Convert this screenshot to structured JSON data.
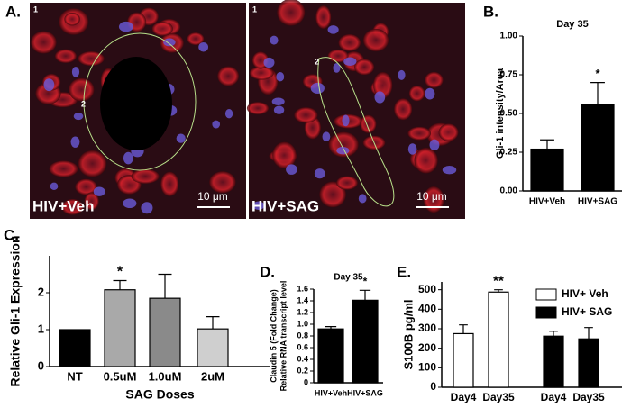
{
  "figure": {
    "panel_labels": [
      "A.",
      "B.",
      "C.",
      "D.",
      "E."
    ],
    "images": [
      {
        "label": "HIV+Veh",
        "scale": "10 μm",
        "markers": [
          "1",
          "2"
        ]
      },
      {
        "label": "HIV+SAG",
        "scale": "10 μm",
        "markers": [
          "1",
          "2"
        ]
      }
    ]
  },
  "chart_data": [
    {
      "type": "bar",
      "title": "Day 35",
      "ylabel": "Gli-1 intensity/Area",
      "categories": [
        "HIV+Veh",
        "HIV+SAG"
      ],
      "values": [
        0.27,
        0.56
      ],
      "errors": [
        0.06,
        0.14
      ],
      "color": "#000000",
      "ylim": [
        0,
        1
      ],
      "yticks": [
        {
          "value": 0,
          "label": "0.00"
        },
        {
          "value": 0.25,
          "label": "0.25"
        },
        {
          "value": 0.5,
          "label": "0.50"
        },
        {
          "value": 0.75,
          "label": "0.75"
        },
        {
          "value": 1,
          "label": "1.00"
        }
      ],
      "annotations": [
        {
          "text": "*",
          "x": "HIV+SAG"
        }
      ]
    },
    {
      "type": "bar",
      "ylabel": "Relative Gli-1 Expression",
      "xlabel": "SAG Doses",
      "categories": [
        "NT",
        "0.5uM",
        "1.0uM",
        "2uM"
      ],
      "values": [
        1.0,
        2.08,
        1.85,
        1.02
      ],
      "errors": [
        0,
        0.25,
        0.65,
        0.33
      ],
      "colors": [
        "#000000",
        "#a9a9a9",
        "#8a8a8a",
        "#cfcfcf"
      ],
      "ylim": [
        0,
        3
      ],
      "yticks": [
        0,
        1,
        2
      ],
      "annotations": [
        {
          "text": "*",
          "x": "0.5uM"
        }
      ]
    },
    {
      "type": "bar",
      "title": "Day 35",
      "ylabel": [
        "Claudin 5 (Fold Change)",
        "Relative RNA transcript level"
      ],
      "categories": [
        "HIV+Veh",
        "HIV+SAG"
      ],
      "values": [
        0.92,
        1.41
      ],
      "errors": [
        0.04,
        0.17
      ],
      "color": "#000000",
      "ylim": [
        0,
        1.6
      ],
      "yticks": [
        0,
        0.2,
        0.4,
        0.6,
        0.8,
        {
          "value": 1,
          "label": "1.0"
        },
        1.2,
        1.4,
        1.6
      ],
      "annotations": [
        {
          "text": "*",
          "x": "HIV+SAG"
        }
      ]
    },
    {
      "type": "bar",
      "ylabel": "S100B pg/ml",
      "legend": "upper right",
      "categories": [
        "Day4",
        "Day35",
        "Day4",
        "Day35"
      ],
      "series": [
        {
          "name": "HIV+ Veh",
          "color": "#ffffff",
          "values": [
            275,
            488,
            null,
            null
          ],
          "errors": [
            45,
            12,
            null,
            null
          ]
        },
        {
          "name": "HIV+ SAG",
          "color": "#000000",
          "values": [
            null,
            null,
            262,
            248
          ],
          "errors": [
            null,
            null,
            25,
            58
          ]
        }
      ],
      "ylim": [
        0,
        540
      ],
      "yticks": [
        0,
        100,
        200,
        300,
        400,
        500
      ],
      "annotations": [
        {
          "text": "**",
          "x": "Day35"
        }
      ]
    }
  ]
}
